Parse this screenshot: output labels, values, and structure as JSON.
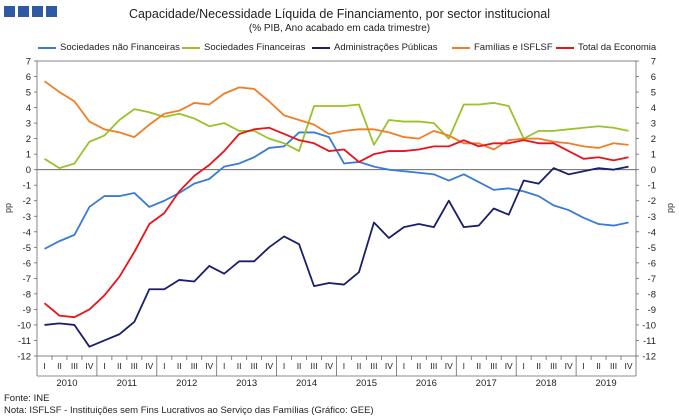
{
  "header": {
    "title": "Capacidade/Necessidade Líquida de Financiamento, por sector institucional",
    "subtitle": "(% PIB, Ano acabado em cada trimestre)"
  },
  "footer": {
    "source": "Fonte: INE",
    "note": "Nota: ISFLSF - Instituições sem Fins Lucrativos ao Serviço das Famílias (Gráfico: GEE)"
  },
  "chart_data": {
    "type": "line",
    "title": "Capacidade/Necessidade Líquida de Financiamento, por sector institucional",
    "subtitle": "(% PIB, Ano acabado em cada trimestre)",
    "ylabel_left": "pp",
    "ylabel_right": "pp",
    "ylim": [
      -12,
      7
    ],
    "yticks": [
      7,
      6,
      5,
      4,
      3,
      2,
      1,
      0,
      -1,
      -2,
      -3,
      -4,
      -5,
      -6,
      -7,
      -8,
      -9,
      -10,
      -11,
      -12
    ],
    "quarter_labels": [
      "I",
      "II",
      "III",
      "IV"
    ],
    "years": [
      "2010",
      "2011",
      "2012",
      "2013",
      "2014",
      "2015",
      "2016",
      "2017",
      "2018",
      "2019"
    ],
    "x": [
      "2010 I",
      "2010 II",
      "2010 III",
      "2010 IV",
      "2011 I",
      "2011 II",
      "2011 III",
      "2011 IV",
      "2012 I",
      "2012 II",
      "2012 III",
      "2012 IV",
      "2013 I",
      "2013 II",
      "2013 III",
      "2013 IV",
      "2014 I",
      "2014 II",
      "2014 III",
      "2014 IV",
      "2015 I",
      "2015 II",
      "2015 III",
      "2015 IV",
      "2016 I",
      "2016 II",
      "2016 III",
      "2016 IV",
      "2017 I",
      "2017 II",
      "2017 III",
      "2017 IV",
      "2018 I",
      "2018 II",
      "2018 III",
      "2018 IV",
      "2019 I",
      "2019 II",
      "2019 III",
      "2019 IV"
    ],
    "series": [
      {
        "name": "Sociedades não Financeiras",
        "color": "#3a7bd5",
        "values": [
          -5.1,
          -4.6,
          -4.2,
          -2.4,
          -1.7,
          -1.7,
          -1.5,
          -2.4,
          -2.0,
          -1.5,
          -0.9,
          -0.6,
          0.2,
          0.4,
          0.8,
          1.4,
          1.5,
          2.4,
          2.4,
          2.1,
          0.4,
          0.5,
          0.2,
          0.0,
          -0.1,
          -0.2,
          -0.3,
          -0.7,
          -0.3,
          -0.8,
          -1.3,
          -1.2,
          -1.4,
          -1.7,
          -2.3,
          -2.6,
          -3.1,
          -3.5,
          -3.6,
          -3.4
        ]
      },
      {
        "name": "Sociedades Financeiras",
        "color": "#9bc12b",
        "values": [
          0.7,
          0.1,
          0.4,
          1.8,
          2.2,
          3.2,
          3.9,
          3.7,
          3.4,
          3.6,
          3.3,
          2.8,
          3.0,
          2.5,
          2.5,
          2.0,
          1.7,
          1.2,
          4.1,
          4.1,
          4.1,
          4.2,
          1.6,
          3.2,
          3.1,
          3.1,
          3.0,
          2.0,
          4.2,
          4.2,
          4.3,
          4.1,
          2.0,
          2.5,
          2.5,
          2.6,
          2.7,
          2.8,
          2.7,
          2.5
        ]
      },
      {
        "name": "Administrações Públicas",
        "color": "#1a1f6b",
        "values": [
          -10.0,
          -9.9,
          -10.0,
          -11.4,
          -11.0,
          -10.6,
          -9.8,
          -7.7,
          -7.7,
          -7.1,
          -7.2,
          -6.2,
          -6.7,
          -5.9,
          -5.9,
          -5.0,
          -4.3,
          -4.8,
          -7.5,
          -7.3,
          -7.4,
          -6.6,
          -3.4,
          -4.4,
          -3.7,
          -3.5,
          -3.7,
          -2.0,
          -3.7,
          -3.6,
          -2.5,
          -2.9,
          -0.7,
          -0.9,
          0.1,
          -0.3,
          -0.1,
          0.1,
          0.0,
          0.2
        ]
      },
      {
        "name": "Famílias e ISFLSF",
        "color": "#f07e26",
        "values": [
          5.7,
          5.0,
          4.4,
          3.1,
          2.6,
          2.4,
          2.1,
          2.9,
          3.6,
          3.8,
          4.3,
          4.2,
          4.9,
          5.3,
          5.2,
          4.4,
          3.5,
          3.2,
          2.9,
          2.3,
          2.5,
          2.6,
          2.6,
          2.4,
          2.1,
          2.0,
          2.5,
          2.2,
          1.7,
          1.7,
          1.3,
          1.9,
          2.0,
          2.0,
          1.8,
          1.7,
          1.5,
          1.4,
          1.7,
          1.6
        ]
      },
      {
        "name": "Total da Economia",
        "color": "#e8141c",
        "values": [
          -8.6,
          -9.4,
          -9.5,
          -9.0,
          -8.1,
          -6.9,
          -5.3,
          -3.5,
          -2.8,
          -1.4,
          -0.4,
          0.3,
          1.2,
          2.3,
          2.6,
          2.7,
          2.3,
          1.9,
          1.7,
          1.2,
          1.3,
          0.5,
          1.0,
          1.2,
          1.2,
          1.3,
          1.5,
          1.5,
          1.9,
          1.5,
          1.7,
          1.7,
          1.9,
          1.7,
          1.7,
          1.2,
          0.7,
          0.8,
          0.6,
          0.8
        ]
      }
    ]
  }
}
